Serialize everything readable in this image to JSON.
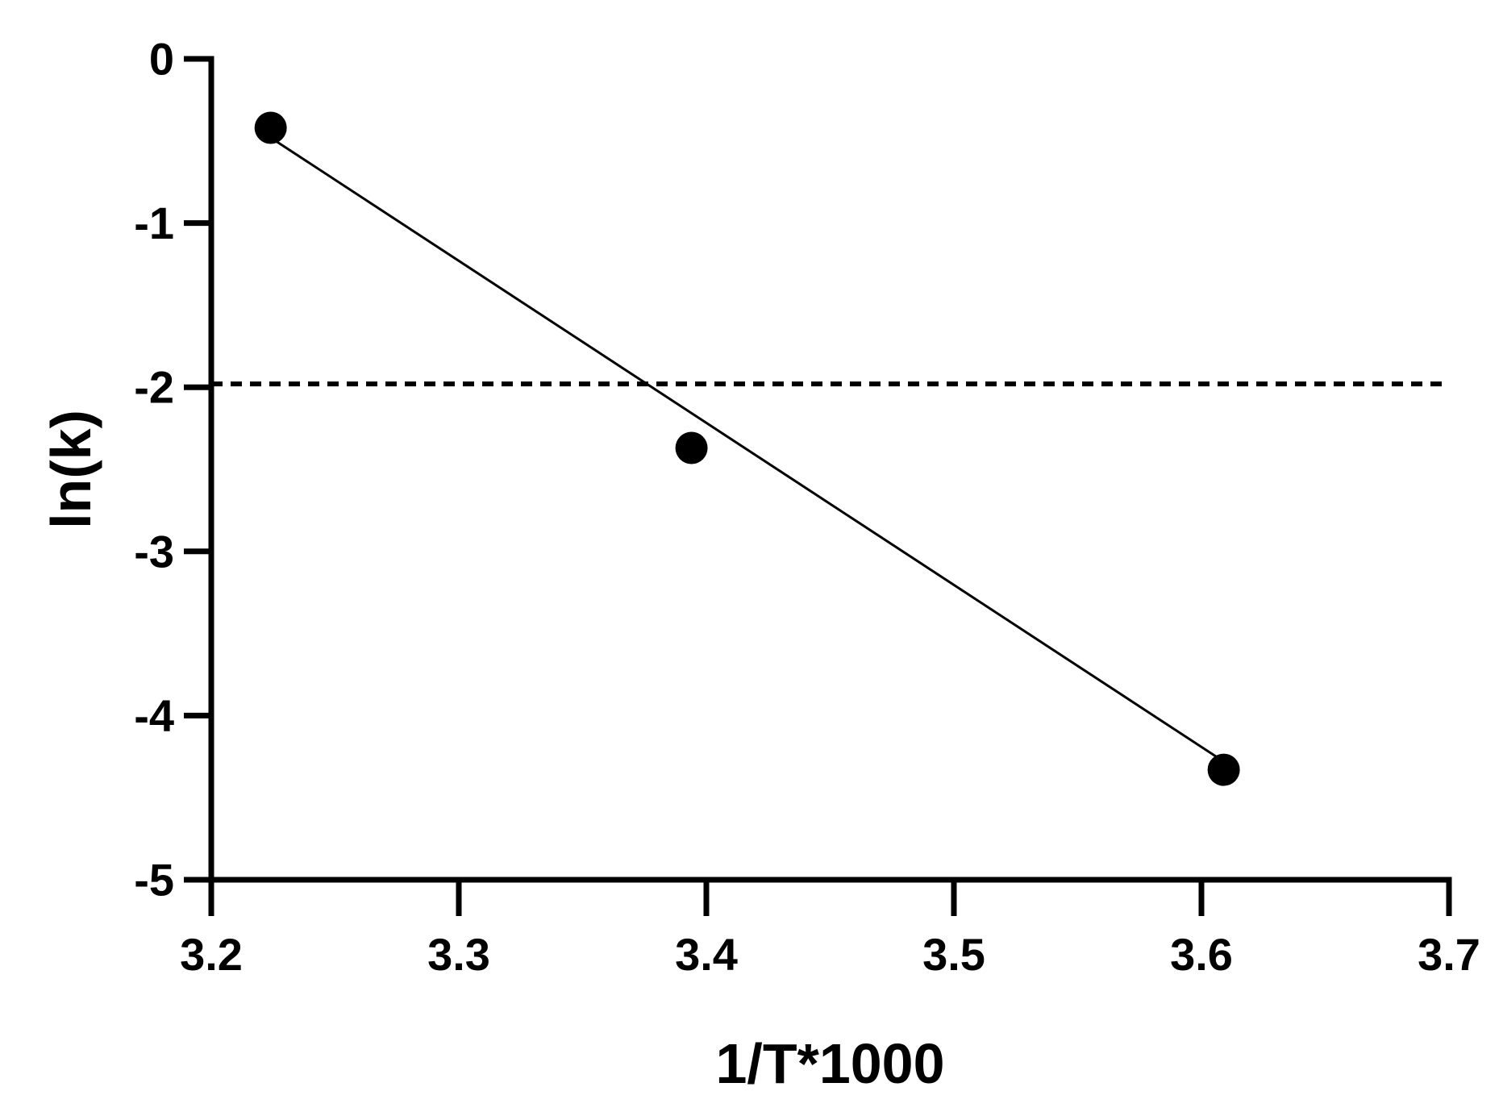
{
  "chart_data": {
    "type": "scatter",
    "title": "",
    "xlabel": "1/T*1000",
    "ylabel": "ln(k)",
    "xlim": [
      3.2,
      3.7
    ],
    "ylim": [
      -5,
      0
    ],
    "x_ticks": [
      "3.2",
      "3.3",
      "3.4",
      "3.5",
      "3.6",
      "3.7"
    ],
    "y_ticks": [
      "0",
      "-1",
      "-2",
      "-3",
      "-4",
      "-5"
    ],
    "grid": false,
    "legend": "none",
    "series": [
      {
        "type": "scatter",
        "x": [
          3.224,
          3.394,
          3.609
        ],
        "y": [
          -0.42,
          -2.37,
          -4.33
        ],
        "color": "#000000"
      },
      {
        "type": "line",
        "style": "solid",
        "x": [
          3.224,
          3.609
        ],
        "y": [
          -0.48,
          -4.28
        ],
        "color": "#000000"
      },
      {
        "type": "line",
        "style": "dotted",
        "x": [
          3.2,
          3.7
        ],
        "y": [
          -1.98,
          -1.98
        ],
        "color": "#000000"
      }
    ]
  }
}
